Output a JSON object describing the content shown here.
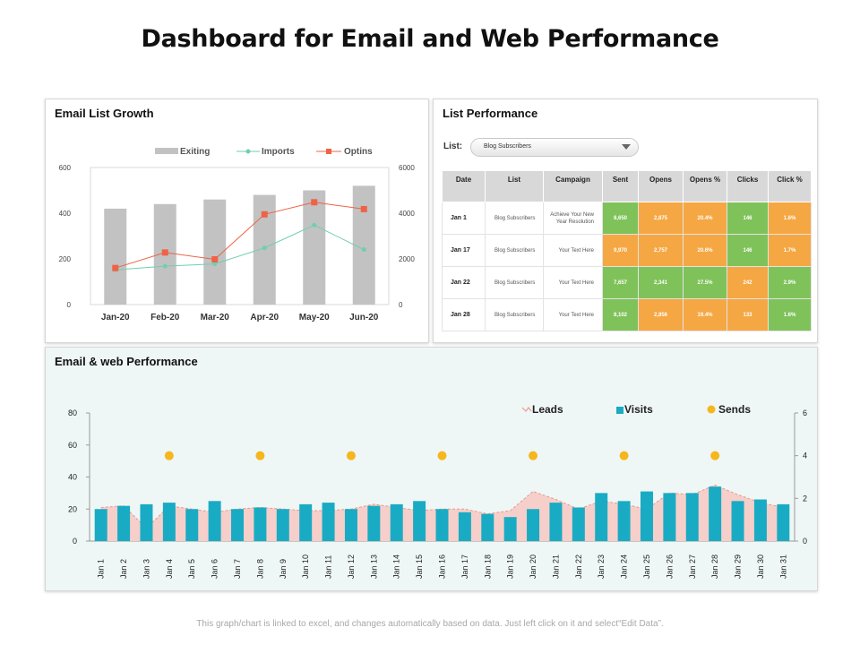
{
  "title": "Dashboard for Email and Web Performance",
  "growth_panel": {
    "title": "Email List Growth",
    "chart_data": {
      "type": "bar",
      "categories": [
        "Jan-20",
        "Feb-20",
        "Mar-20",
        "Apr-20",
        "May-20",
        "Jun-20"
      ],
      "series": [
        {
          "name": "Exiting",
          "type": "bar",
          "axis": "left",
          "values": [
            420,
            440,
            460,
            480,
            500,
            520
          ]
        },
        {
          "name": "Imports",
          "type": "line",
          "axis": "right",
          "values": [
            1520,
            1680,
            1780,
            2480,
            3480,
            2410
          ]
        },
        {
          "name": "Optins",
          "type": "line",
          "axis": "right",
          "values": [
            1600,
            2280,
            1980,
            3950,
            4480,
            4180
          ]
        }
      ],
      "y_left": {
        "min": 0,
        "max": 600,
        "ticks": [
          "0",
          "200",
          "400",
          "600"
        ]
      },
      "y_right": {
        "min": 0,
        "max": 6000,
        "ticks": [
          "0",
          "2000",
          "4000",
          "6000"
        ]
      },
      "colors": {
        "Exiting": "#c2c2c2",
        "Imports": "#6fcfb0",
        "Optins": "#ee6346"
      },
      "legend": "top"
    }
  },
  "list_panel": {
    "title": "List Performance",
    "list_label": "List:",
    "selected_list": "Blog Subscribers",
    "columns": [
      "Date",
      "List",
      "Campaign",
      "Sent",
      "Opens",
      "Opens %",
      "Clicks",
      "Click %"
    ],
    "rows": [
      {
        "date": "Jan 1",
        "list": "Blog Subscribers",
        "campaign": "Achieve Your New Year Resolution",
        "sent": "8,650",
        "opens": "2,875",
        "opens_pct": "20.4%",
        "clicks": "146",
        "click_pct": "1.6%",
        "colors": [
          "#7fc25a",
          "#f5a744",
          "#f5a744",
          "#7fc25a",
          "#f5a744"
        ]
      },
      {
        "date": "Jan 17",
        "list": "Blog Subscribers",
        "campaign": "Your Text Here",
        "sent": "9,970",
        "opens": "2,757",
        "opens_pct": "20.6%",
        "clicks": "146",
        "click_pct": "1.7%",
        "colors": [
          "#f5a744",
          "#f5a744",
          "#f5a744",
          "#7fc25a",
          "#f5a744"
        ]
      },
      {
        "date": "Jan 22",
        "list": "Blog Subscribers",
        "campaign": "Your Text Here",
        "sent": "7,657",
        "opens": "2,341",
        "opens_pct": "27.5%",
        "clicks": "242",
        "click_pct": "2.9%",
        "colors": [
          "#7fc25a",
          "#7fc25a",
          "#7fc25a",
          "#f5a744",
          "#7fc25a"
        ]
      },
      {
        "date": "Jan 28",
        "list": "Blog Subscribers",
        "campaign": "Your Text Here",
        "sent": "8,102",
        "opens": "2,856",
        "opens_pct": "19.4%",
        "clicks": "133",
        "click_pct": "1.6%",
        "colors": [
          "#7fc25a",
          "#f5a744",
          "#f5a744",
          "#f5a744",
          "#7fc25a"
        ]
      }
    ]
  },
  "web_panel": {
    "title": "Email & web Performance",
    "chart_data": {
      "type": "bar",
      "categories": [
        "Jan 1",
        "Jan 2",
        "Jan 3",
        "Jan 4",
        "Jan 5",
        "Jan 6",
        "Jan 7",
        "Jan 8",
        "Jan 9",
        "Jan 10",
        "Jan 11",
        "Jan 12",
        "Jan 13",
        "Jan 14",
        "Jan 15",
        "Jan 16",
        "Jan 17",
        "Jan 18",
        "Jan 19",
        "Jan 20",
        "Jan 21",
        "Jan 22",
        "Jan 23",
        "Jan 24",
        "Jan 25",
        "Jan 26",
        "Jan 27",
        "Jan 28",
        "Jan 29",
        "Jan 30",
        "Jan 31"
      ],
      "series": [
        {
          "name": "Leads",
          "type": "area",
          "axis": "left",
          "values": [
            21,
            22,
            8,
            22,
            20,
            18,
            20,
            21,
            20,
            19,
            19,
            20,
            23,
            21,
            19,
            20,
            20,
            17,
            19,
            31,
            26,
            20,
            25,
            23,
            20,
            30,
            29,
            35,
            29,
            24,
            21
          ]
        },
        {
          "name": "Visits",
          "type": "bar",
          "axis": "left",
          "values": [
            20,
            22,
            23,
            24,
            20,
            25,
            20,
            21,
            20,
            23,
            24,
            20,
            22,
            23,
            25,
            20,
            18,
            17,
            15,
            20,
            24,
            21,
            30,
            25,
            31,
            30,
            30,
            34,
            25,
            26,
            23
          ]
        },
        {
          "name": "Sends",
          "type": "scatter",
          "axis": "right",
          "points": [
            {
              "x": "Jan 4",
              "y": 4
            },
            {
              "x": "Jan 8",
              "y": 4
            },
            {
              "x": "Jan 12",
              "y": 4
            },
            {
              "x": "Jan 16",
              "y": 4
            },
            {
              "x": "Jan 20",
              "y": 4
            },
            {
              "x": "Jan 24",
              "y": 4
            },
            {
              "x": "Jan 28",
              "y": 4
            }
          ]
        }
      ],
      "y_left": {
        "min": 0,
        "max": 80,
        "ticks": [
          "0",
          "20",
          "40",
          "60",
          "80"
        ]
      },
      "y_right": {
        "min": 0,
        "max": 6,
        "ticks": [
          "0",
          "2",
          "4",
          "6"
        ]
      },
      "colors": {
        "Leads": "#f6cfca",
        "LeadsLine": "#e89a90",
        "Visits": "#1aabc4",
        "Sends": "#f6b61c"
      },
      "legend": "top-right"
    }
  },
  "footnote": "This graph/chart is linked to excel, and changes automatically based on data. Just left click on it and select“Edit Data”."
}
